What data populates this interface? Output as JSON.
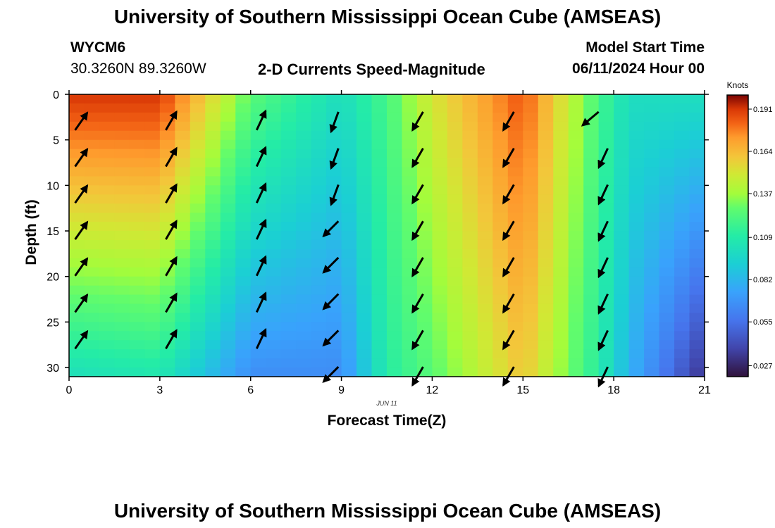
{
  "header": {
    "title_top": "University of Southern Mississippi Ocean Cube (AMSEAS)",
    "title_bottom": "University of Southern Mississippi Ocean Cube (AMSEAS)",
    "station_id": "WYCM6",
    "station_coords": "30.3260N  89.3260W",
    "plot_title": "2-D Currents Speed-Magnitude",
    "model_start_label": "Model Start Time",
    "model_start_value": "06/11/2024 Hour 00"
  },
  "chart_data": {
    "type": "heatmap",
    "title": "2-D Currents Speed-Magnitude",
    "xlabel": "Forecast Time(Z)",
    "ylabel": "Depth (ft)",
    "date_label": "JUN 11",
    "xlim": [
      0,
      21
    ],
    "ylim": [
      0,
      31
    ],
    "x_ticks": [
      0,
      3,
      6,
      9,
      12,
      15,
      18,
      21
    ],
    "y_ticks": [
      0,
      5,
      10,
      15,
      20,
      25,
      30
    ],
    "colorbar": {
      "label": "Knots",
      "min": 0.02,
      "max": 0.2,
      "ticks": [
        "0.191",
        "0.164",
        "0.137",
        "0.109",
        "0.082",
        "0.055",
        "0.027"
      ],
      "tick_values": [
        0.191,
        0.164,
        0.137,
        0.109,
        0.082,
        0.055,
        0.027
      ]
    },
    "speed_profile": {
      "times": [
        0,
        3,
        6,
        9,
        10.5,
        12,
        15,
        17.5,
        18.5,
        21
      ],
      "surface": [
        0.19,
        0.19,
        0.125,
        0.1,
        0.12,
        0.15,
        0.185,
        0.12,
        0.1,
        0.1
      ],
      "bottom": [
        0.1,
        0.105,
        0.065,
        0.065,
        0.11,
        0.125,
        0.16,
        0.11,
        0.08,
        0.03
      ]
    },
    "vectors": [
      {
        "time": 0.2,
        "direction_deg": 35,
        "depths": [
          3,
          7,
          11,
          15,
          19,
          23,
          27
        ]
      },
      {
        "time": 3.2,
        "direction_deg": 30,
        "depths": [
          3,
          7,
          11,
          15,
          19,
          23,
          27
        ]
      },
      {
        "time": 6.2,
        "direction_deg": 25,
        "depths": [
          3,
          7,
          11,
          15,
          19,
          23,
          27
        ]
      },
      {
        "time": 8.9,
        "direction_deg": 200,
        "depths": [
          1,
          5,
          9
        ]
      },
      {
        "time": 8.9,
        "direction_deg": 225,
        "depths": [
          13,
          17,
          21,
          25,
          29
        ]
      },
      {
        "time": 11.7,
        "direction_deg": 210,
        "depths": [
          1,
          5,
          9,
          13,
          17,
          21,
          25,
          29
        ]
      },
      {
        "time": 14.7,
        "direction_deg": 210,
        "depths": [
          1,
          5,
          9,
          13,
          17,
          21,
          25,
          29
        ]
      },
      {
        "time": 17.5,
        "direction_deg": 230,
        "depths": [
          1
        ]
      },
      {
        "time": 17.8,
        "direction_deg": 205,
        "depths": [
          5,
          9,
          13,
          17,
          21,
          25,
          29
        ]
      }
    ]
  }
}
